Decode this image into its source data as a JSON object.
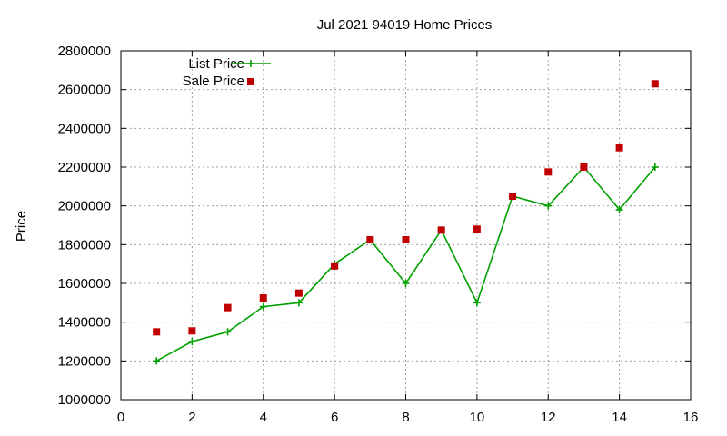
{
  "chart_data": {
    "type": "line",
    "title": "Jul 2021 94019 Home Prices",
    "xlabel": "",
    "ylabel": "Price",
    "xlim": [
      0,
      16
    ],
    "ylim": [
      1000000,
      2800000
    ],
    "x_ticks": [
      "0",
      "2",
      "4",
      "6",
      "8",
      "10",
      "12",
      "14",
      "16"
    ],
    "y_ticks": [
      "1000000",
      "1200000",
      "1400000",
      "1600000",
      "1800000",
      "2000000",
      "2200000",
      "2400000",
      "2600000",
      "2800000"
    ],
    "grid": true,
    "legend_position": "top-left",
    "series": [
      {
        "name": "List Price",
        "style": "line-plus",
        "color": "#00a000",
        "x": [
          1,
          2,
          3,
          4,
          5,
          6,
          7,
          8,
          9,
          10,
          11,
          12,
          13,
          14,
          15
        ],
        "y": [
          1200000,
          1300000,
          1350000,
          1480000,
          1500000,
          1700000,
          1825000,
          1600000,
          1875000,
          1500000,
          2050000,
          2000000,
          2200000,
          1980000,
          2200000
        ]
      },
      {
        "name": "Sale Price",
        "style": "square-points",
        "color": "#c00000",
        "x": [
          1,
          2,
          3,
          4,
          5,
          6,
          7,
          8,
          9,
          10,
          11,
          12,
          13,
          14,
          15
        ],
        "y": [
          1350000,
          1355000,
          1475000,
          1525000,
          1550000,
          1690000,
          1825000,
          1825000,
          1875000,
          1880000,
          2050000,
          2175000,
          2200000,
          2300000,
          2630000
        ]
      }
    ]
  }
}
